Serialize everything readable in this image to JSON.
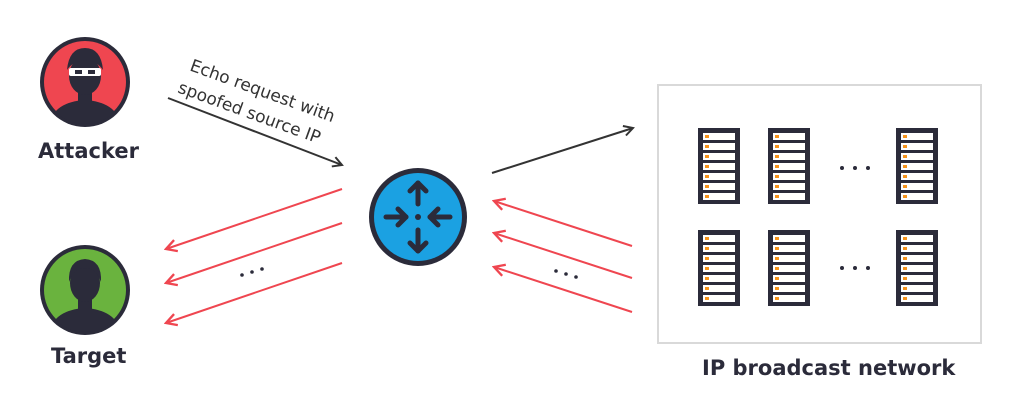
{
  "labels": {
    "attacker": "Attacker",
    "target": "Target",
    "network": "IP broadcast network"
  },
  "annotation": {
    "line1": "Echo request with",
    "line2": "spoofed source IP"
  },
  "colors": {
    "dark": "#2b2b3a",
    "attacker_bg": "#ef4650",
    "target_bg": "#6ab33e",
    "router_bg": "#1ba1e2",
    "reply_arrow": "#ef4650",
    "request_arrow": "#333333",
    "server_led": "#f7941d",
    "network_border": "#d9d9d9"
  },
  "icons": {
    "attacker": "hacker-avatar-icon",
    "target": "user-avatar-icon",
    "router": "router-icon",
    "server": "server-rack-icon"
  }
}
